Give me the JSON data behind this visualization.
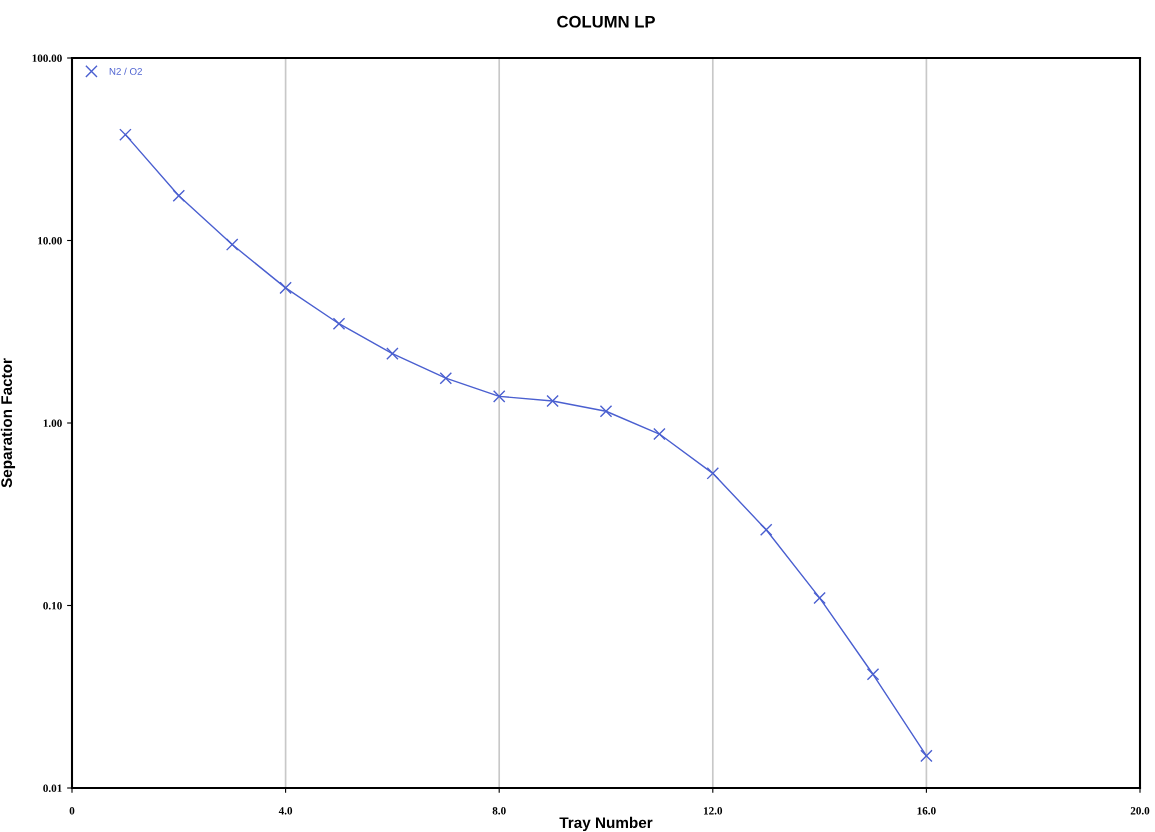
{
  "chart_data": {
    "type": "line",
    "title": "COLUMN LP",
    "xlabel": "Tray Number",
    "ylabel": "Separation Factor",
    "x": [
      1,
      2,
      3,
      4,
      5,
      6,
      7,
      8,
      9,
      10,
      11,
      12,
      13,
      14,
      15,
      16
    ],
    "series": [
      {
        "name": "N2 / O2",
        "color": "#4a5fd0",
        "values": [
          38,
          17.6,
          9.5,
          5.5,
          3.5,
          2.4,
          1.76,
          1.4,
          1.32,
          1.16,
          0.87,
          0.53,
          0.26,
          0.11,
          0.042,
          0.015
        ]
      }
    ],
    "log": true,
    "xlim": [
      0,
      20
    ],
    "ylim": [
      0.01,
      100
    ],
    "xticks": [
      {
        "value": 0,
        "label": "0"
      },
      {
        "value": 4,
        "label": "4.0"
      },
      {
        "value": 8,
        "label": "8.0"
      },
      {
        "value": 12,
        "label": "12.0"
      },
      {
        "value": 16,
        "label": "16.0"
      },
      {
        "value": 20,
        "label": "20.0"
      }
    ],
    "yticks": [
      {
        "value": 0.01,
        "label": "0.01"
      },
      {
        "value": 0.1,
        "label": "0.10"
      },
      {
        "value": 1,
        "label": "1.00"
      },
      {
        "value": 10,
        "label": "10.00"
      },
      {
        "value": 100,
        "label": "100.00"
      }
    ],
    "grid": "x",
    "legend": "top left",
    "marker": "cross",
    "line_style": "solid"
  }
}
